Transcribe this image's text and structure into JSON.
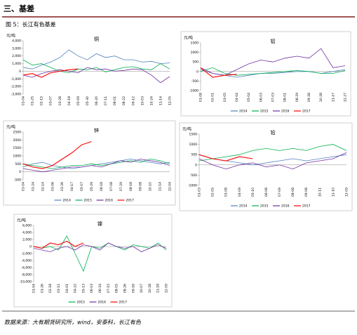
{
  "section_title": "三、基差",
  "figure_title": "图 5：长江有色基差",
  "source": "数据来源：大有期货研究所，wind，安泰科，长江有色",
  "chart_data": [
    {
      "type": "line",
      "title": "铜",
      "y_label": "元/吨",
      "categories": [
        "01-04",
        "01-25",
        "02-15",
        "03-07",
        "03-28",
        "04-18",
        "05-09",
        "05-30",
        "06-20",
        "07-11",
        "08-01",
        "08-22",
        "09-12",
        "10-03",
        "10-24",
        "11-14",
        "12-05"
      ],
      "ylim": [
        -3000,
        4000
      ],
      "yticks": [
        {
          "value": -3000,
          "label": "-3,000"
        },
        {
          "value": -2000,
          "label": "-2,000"
        },
        {
          "value": -1000,
          "label": "-1,000"
        },
        0,
        {
          "value": 1000,
          "label": "1,000"
        },
        {
          "value": 2000,
          "label": "2,000"
        },
        {
          "value": 3000,
          "label": "3,000"
        },
        {
          "value": 4000,
          "label": "4,000"
        }
      ],
      "series": [
        {
          "color": "#4f81bd",
          "values": [
            500,
            300,
            800,
            1200,
            1800,
            2800,
            2000,
            1500,
            2300,
            1800,
            2000,
            1500,
            1500,
            1200,
            1300,
            1000,
            1100
          ]
        },
        {
          "color": "#00b050",
          "values": [
            1500,
            800,
            1000,
            500,
            0,
            -200,
            300,
            200,
            500,
            -100,
            200,
            500,
            600,
            300,
            200,
            1000,
            300
          ]
        },
        {
          "color": "#7030a0",
          "values": [
            -500,
            -800,
            -300,
            0,
            200,
            0,
            -200,
            500,
            200,
            300,
            0,
            100,
            300,
            200,
            -500,
            -1500,
            -700
          ]
        },
        {
          "color": "#ff0000",
          "values": [
            -500,
            -300,
            -800,
            -200,
            0,
            200,
            300,
            null,
            null,
            null,
            null,
            null,
            null,
            null,
            null,
            null,
            null
          ]
        }
      ]
    },
    {
      "type": "line",
      "title": "铝",
      "y_label": "元/吨",
      "categories": [
        "01-08",
        "02-01",
        "03-05",
        "04-04",
        "05-04",
        "06-03",
        "07-03",
        "08-01",
        "08-29",
        "09-28",
        "10-28",
        "11-27",
        "12-27"
      ],
      "ylim": [
        -1000,
        1500
      ],
      "yticks": [
        -1000,
        -500,
        0,
        500,
        1000,
        1500
      ],
      "series": [
        {
          "name": "2014",
          "color": "#4f81bd",
          "values": [
            100,
            -100,
            -200,
            -300,
            -200,
            -100,
            -100,
            -50,
            0,
            0,
            -100,
            0,
            100
          ]
        },
        {
          "name": "2015",
          "color": "#00b050",
          "values": [
            0,
            200,
            -100,
            -200,
            -150,
            -100,
            -50,
            0,
            50,
            0,
            -100,
            -100,
            50
          ]
        },
        {
          "name": "2016",
          "color": "#7030a0",
          "values": [
            200,
            -100,
            -200,
            100,
            400,
            600,
            500,
            700,
            800,
            700,
            1200,
            200,
            300
          ]
        },
        {
          "name": "2017",
          "color": "#ff0000",
          "values": [
            200,
            -300,
            -200,
            -150,
            null,
            null,
            null,
            null,
            null,
            null,
            null,
            null,
            null
          ]
        }
      ]
    },
    {
      "type": "line",
      "title": "锌",
      "y_label": "元/吨",
      "categories": [
        "01-04",
        "01-24",
        "02-14",
        "03-06",
        "03-26",
        "04-17",
        "05-07",
        "05-29",
        "06-18",
        "07-08",
        "07-29",
        "08-18",
        "09-08",
        "10-10",
        "11-14",
        "12-04"
      ],
      "ylim": [
        -500,
        2500
      ],
      "yticks": [
        -500,
        0,
        500,
        1000,
        1500,
        2000,
        2500
      ],
      "series": [
        {
          "name": "2014",
          "color": "#4f81bd",
          "values": [
            300,
            500,
            600,
            400,
            300,
            200,
            300,
            400,
            500,
            600,
            700,
            800,
            700,
            600,
            500,
            600
          ]
        },
        {
          "name": "2015",
          "color": "#00b050",
          "values": [
            500,
            400,
            300,
            200,
            300,
            400,
            400,
            500,
            400,
            500,
            600,
            700,
            600,
            800,
            700,
            500
          ]
        },
        {
          "name": "2016",
          "color": "#7030a0",
          "values": [
            200,
            100,
            0,
            100,
            200,
            300,
            300,
            400,
            300,
            500,
            700,
            600,
            800,
            700,
            600,
            400
          ]
        },
        {
          "name": "2017",
          "color": "#ff0000",
          "values": [
            500,
            300,
            200,
            400,
            800,
            1200,
            1700,
            1900,
            null,
            null,
            null,
            null,
            null,
            null,
            null,
            null
          ]
        }
      ]
    },
    {
      "type": "line",
      "title": "铅",
      "y_label": "元/吨",
      "categories": [
        "01-03",
        "02-05",
        "03-08",
        "04-09",
        "05-10",
        "06-08",
        "07-09",
        "08-08",
        "09-08",
        "10-11",
        "11-10",
        "12-09"
      ],
      "ylim": [
        -1000,
        1500
      ],
      "yticks": [
        -1000,
        -500,
        0,
        500,
        1000,
        1500
      ],
      "series": [
        {
          "name": "2014",
          "color": "#4f81bd",
          "values": [
            500,
            300,
            200,
            100,
            0,
            100,
            200,
            300,
            200,
            300,
            400,
            500
          ]
        },
        {
          "name": "2015",
          "color": "#00b050",
          "values": [
            200,
            300,
            400,
            500,
            700,
            800,
            700,
            800,
            700,
            900,
            1000,
            700
          ]
        },
        {
          "name": "2016",
          "color": "#7030a0",
          "values": [
            300,
            0,
            -200,
            0,
            100,
            -100,
            0,
            -200,
            100,
            200,
            300,
            600
          ]
        },
        {
          "name": "2017",
          "color": "#ff0000",
          "values": [
            500,
            300,
            200,
            400,
            300,
            null,
            null,
            null,
            null,
            null,
            null,
            null
          ]
        }
      ]
    },
    {
      "type": "line",
      "title": "镍",
      "y_label": "元/吨",
      "categories": [
        "01-04",
        "01-26",
        "02-18",
        "03-11",
        "04-01",
        "04-22",
        "05-13",
        "06-03",
        "06-24",
        "07-15",
        "08-05",
        "08-26",
        "09-16",
        "10-07",
        "10-28",
        "11-18",
        "12-09"
      ],
      "ylim": [
        -10000,
        6000
      ],
      "yticks": [
        {
          "value": -10000,
          "label": "-10,000"
        },
        {
          "value": -8000,
          "label": "-8,000"
        },
        {
          "value": -6000,
          "label": "-6,000"
        },
        {
          "value": -4000,
          "label": "-4,000"
        },
        {
          "value": -2000,
          "label": "-2,000"
        },
        0,
        {
          "value": 2000,
          "label": "2,000"
        },
        {
          "value": 4000,
          "label": "4,000"
        },
        {
          "value": 6000,
          "label": "6,000"
        }
      ],
      "series": [
        {
          "name": "2015",
          "color": "#00b050",
          "values": [
            0,
            -500,
            0,
            -1000,
            3000,
            -2000,
            -7000,
            0,
            -500,
            1000,
            0,
            -1000,
            500,
            0,
            -500,
            1000,
            -1000
          ]
        },
        {
          "name": "2016",
          "color": "#7030a0",
          "values": [
            -500,
            -1000,
            -1500,
            -500,
            0,
            -1000,
            500,
            0,
            -1000,
            1000,
            0,
            -500,
            0,
            -1500,
            -500,
            500,
            -500
          ]
        },
        {
          "name": "2017",
          "color": "#ff0000",
          "values": [
            0,
            -500,
            1000,
            500,
            1500,
            0,
            1000,
            null,
            null,
            null,
            null,
            null,
            null,
            null,
            null,
            null,
            null
          ]
        }
      ]
    }
  ]
}
